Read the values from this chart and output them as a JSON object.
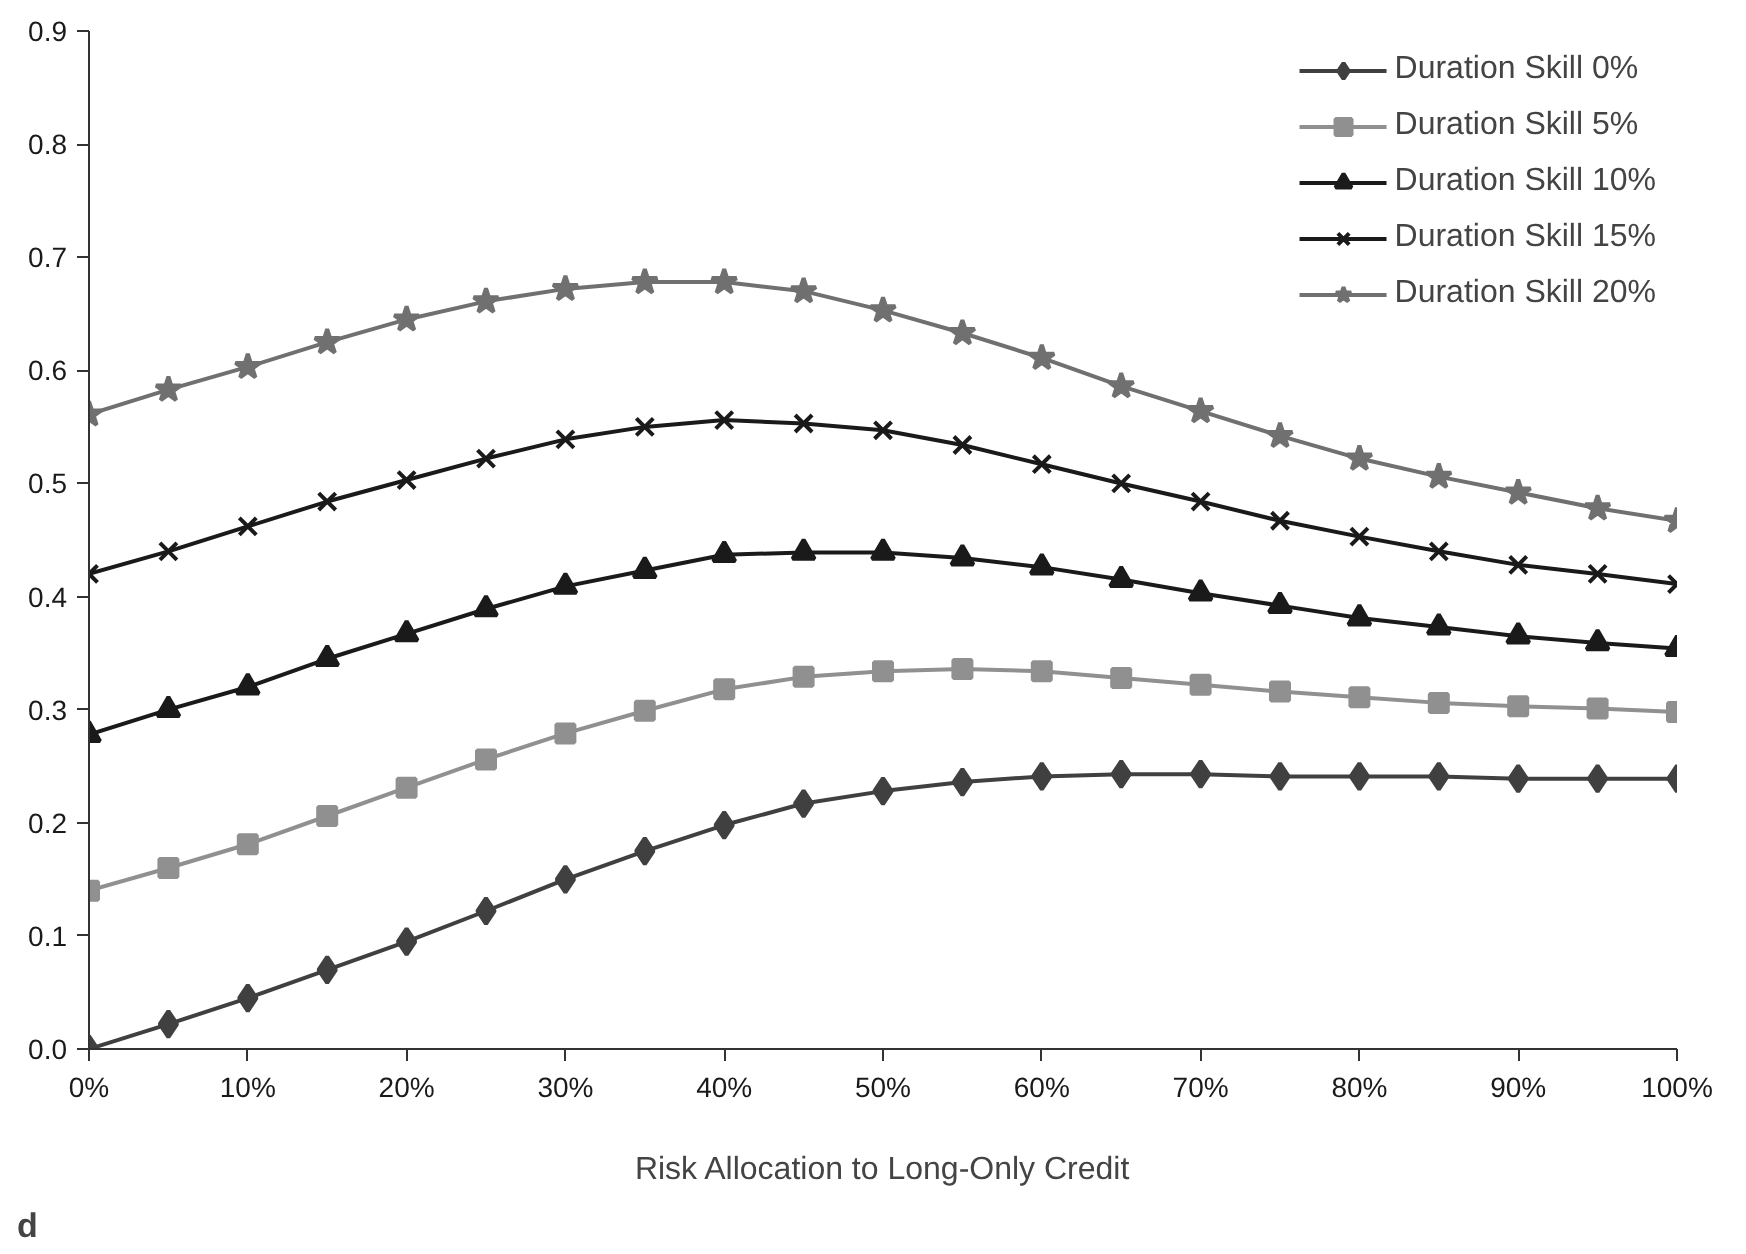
{
  "chart_data": {
    "type": "line",
    "xlabel": "Risk Allocation to Long-Only Credit",
    "annotations": [
      "d"
    ],
    "x": [
      0,
      5,
      10,
      15,
      20,
      25,
      30,
      35,
      40,
      45,
      50,
      55,
      60,
      65,
      70,
      75,
      80,
      85,
      90,
      95,
      100
    ],
    "xlim": [
      0,
      100
    ],
    "xticks": [
      {
        "value": 0,
        "label": "0%"
      },
      {
        "value": 10,
        "label": "10%"
      },
      {
        "value": 20,
        "label": "20%"
      },
      {
        "value": 30,
        "label": "30%"
      },
      {
        "value": 40,
        "label": "40%"
      },
      {
        "value": 50,
        "label": "50%"
      },
      {
        "value": 60,
        "label": "60%"
      },
      {
        "value": 70,
        "label": "70%"
      },
      {
        "value": 80,
        "label": "80%"
      },
      {
        "value": 90,
        "label": "90%"
      },
      {
        "value": 100,
        "label": "100%"
      }
    ],
    "ylim": [
      0,
      0.9
    ],
    "yticks": [
      {
        "value": 0,
        "label": "0.0"
      },
      0.1,
      0.2,
      0.3,
      0.4,
      0.5,
      0.6,
      0.7,
      0.8,
      0.9
    ],
    "grid": false,
    "legend": "top right",
    "line_style": "solid",
    "series": [
      {
        "name": "Duration Skill 0%",
        "color": "#404040",
        "marker": "diamond",
        "values": [
          0,
          0.022,
          0.045,
          0.07,
          0.095,
          0.122,
          0.15,
          0.175,
          0.198,
          0.217,
          0.228,
          0.236,
          0.241,
          0.243,
          0.243,
          0.241,
          0.241,
          0.241,
          0.239,
          0.239,
          0.239
        ]
      },
      {
        "name": "Duration Skill 5%",
        "color": "#909090",
        "marker": "square",
        "values": [
          0.14,
          0.16,
          0.181,
          0.206,
          0.231,
          0.256,
          0.279,
          0.299,
          0.318,
          0.329,
          0.334,
          0.336,
          0.334,
          0.328,
          0.322,
          0.316,
          0.311,
          0.306,
          0.303,
          0.301,
          0.298
        ]
      },
      {
        "name": "Duration Skill 10%",
        "color": "#1a1a1a",
        "marker": "triangle",
        "values": [
          0.278,
          0.3,
          0.32,
          0.345,
          0.367,
          0.389,
          0.409,
          0.423,
          0.437,
          0.439,
          0.439,
          0.434,
          0.426,
          0.415,
          0.403,
          0.392,
          0.381,
          0.373,
          0.365,
          0.359,
          0.354
        ]
      },
      {
        "name": "Duration Skill 15%",
        "color": "#1a1a1a",
        "marker": "cross",
        "values": [
          0.42,
          0.44,
          0.462,
          0.484,
          0.503,
          0.522,
          0.539,
          0.55,
          0.556,
          0.553,
          0.547,
          0.534,
          0.517,
          0.5,
          0.484,
          0.467,
          0.453,
          0.44,
          0.428,
          0.42,
          0.411
        ]
      },
      {
        "name": "Duration Skill 20%",
        "color": "#707070",
        "marker": "star",
        "values": [
          0.561,
          0.583,
          0.603,
          0.625,
          0.645,
          0.661,
          0.672,
          0.678,
          0.678,
          0.67,
          0.653,
          0.633,
          0.611,
          0.586,
          0.564,
          0.542,
          0.522,
          0.506,
          0.492,
          0.478,
          0.467
        ]
      }
    ]
  }
}
